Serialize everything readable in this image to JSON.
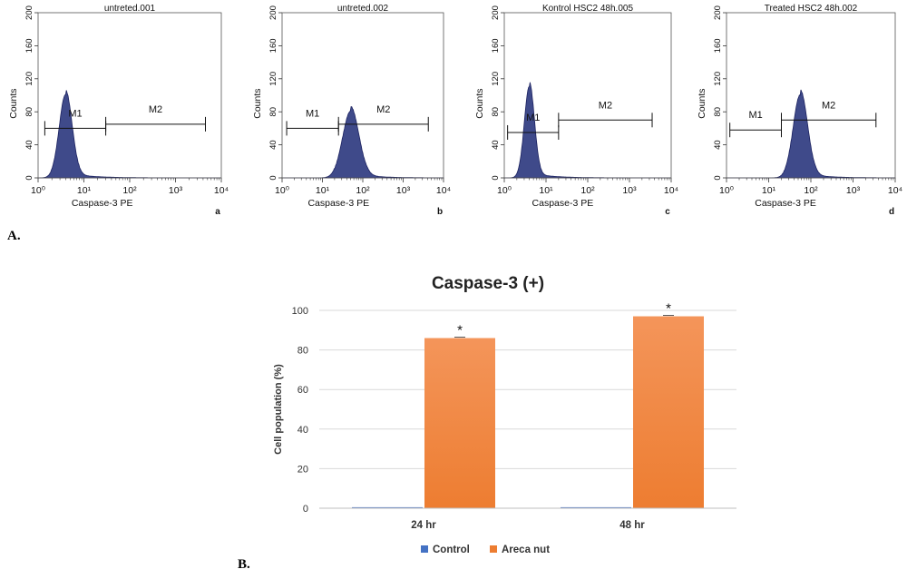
{
  "panel_labels": {
    "a": "A.",
    "b": "B."
  },
  "chart_data": [
    {
      "type": "histogram",
      "title": "untreted.001",
      "sublabel": "a",
      "xlabel": "Caspase-3 PE",
      "ylabel": "Counts",
      "xscale": "log",
      "xlim": [
        1,
        10000
      ],
      "ylim": [
        0,
        200
      ],
      "yticks": [
        0,
        40,
        80,
        120,
        160,
        200
      ],
      "xticks": [
        "10⁰",
        "10¹",
        "10²",
        "10³",
        "10⁴"
      ],
      "peak": {
        "center_log": 0.6,
        "width_log": 0.14,
        "height": 100
      },
      "gates": [
        {
          "name": "M1",
          "x_start": 1.4,
          "x_end": 30,
          "y": 60
        },
        {
          "name": "M2",
          "x_start": 30,
          "x_end": 4500,
          "y": 65
        }
      ]
    },
    {
      "type": "histogram",
      "title": "untreted.002",
      "sublabel": "b",
      "xlabel": "Caspase-3 PE",
      "ylabel": "Counts",
      "xscale": "log",
      "xlim": [
        1,
        10000
      ],
      "ylim": [
        0,
        200
      ],
      "yticks": [
        0,
        40,
        80,
        120,
        160,
        200
      ],
      "xticks": [
        "10⁰",
        "10¹",
        "10²",
        "10³",
        "10⁴"
      ],
      "peak": {
        "center_log": 1.7,
        "width_log": 0.2,
        "height": 80
      },
      "gates": [
        {
          "name": "M1",
          "x_start": 1.3,
          "x_end": 25,
          "y": 60
        },
        {
          "name": "M2",
          "x_start": 25,
          "x_end": 4200,
          "y": 65
        }
      ]
    },
    {
      "type": "histogram",
      "title": "Kontrol HSC2 48h.005",
      "sublabel": "c",
      "xlabel": "Caspase-3 PE",
      "ylabel": "Counts",
      "xscale": "log",
      "xlim": [
        1,
        10000
      ],
      "ylim": [
        0,
        200
      ],
      "yticks": [
        0,
        40,
        80,
        120,
        160,
        200
      ],
      "xticks": [
        "10⁰",
        "10¹",
        "10²",
        "10³",
        "10⁴"
      ],
      "peak": {
        "center_log": 0.6,
        "width_log": 0.12,
        "height": 110
      },
      "gates": [
        {
          "name": "M1",
          "x_start": 1.2,
          "x_end": 20,
          "y": 55
        },
        {
          "name": "M2",
          "x_start": 20,
          "x_end": 3500,
          "y": 70
        }
      ]
    },
    {
      "type": "histogram",
      "title": "Treated HSC2 48h.002",
      "sublabel": "d",
      "xlabel": "Caspase-3 PE",
      "ylabel": "Counts",
      "xscale": "log",
      "xlim": [
        1,
        10000
      ],
      "ylim": [
        0,
        200
      ],
      "yticks": [
        0,
        40,
        80,
        120,
        160,
        200
      ],
      "xticks": [
        "10⁰",
        "10¹",
        "10²",
        "10³",
        "10⁴"
      ],
      "peak": {
        "center_log": 1.75,
        "width_log": 0.17,
        "height": 100
      },
      "gates": [
        {
          "name": "M1",
          "x_start": 1.2,
          "x_end": 20,
          "y": 58
        },
        {
          "name": "M2",
          "x_start": 20,
          "x_end": 3500,
          "y": 70
        }
      ]
    },
    {
      "type": "bar",
      "title": "Caspase-3 (+)",
      "xlabel": "",
      "ylabel": "Cell population (%)",
      "categories": [
        "24 hr",
        "48 hr"
      ],
      "ylim": [
        0,
        100
      ],
      "yticks": [
        0,
        20,
        40,
        60,
        80,
        100
      ],
      "series": [
        {
          "name": "Control",
          "values": [
            0.5,
            0.5
          ],
          "color": "#4472C4"
        },
        {
          "name": "Areca nut",
          "values": [
            86,
            97
          ],
          "color": "#ED7D31",
          "significance": [
            "*",
            "*"
          ]
        }
      ]
    }
  ]
}
